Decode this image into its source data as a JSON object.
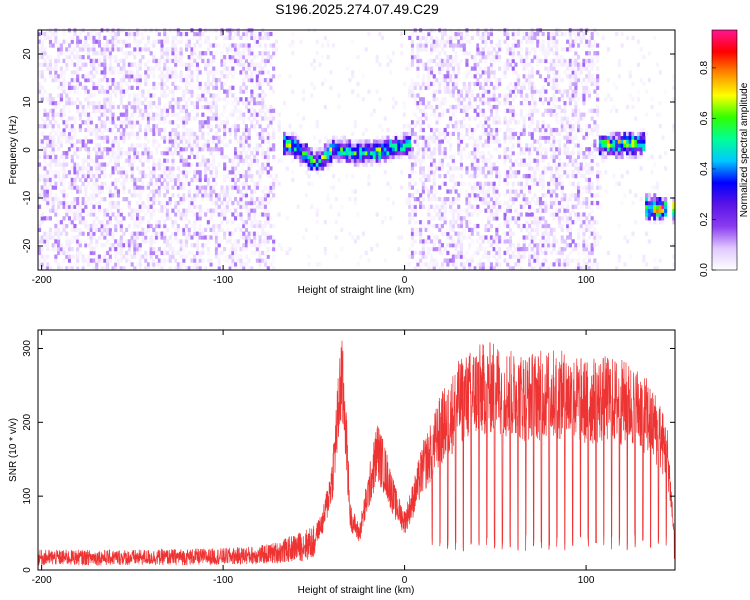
{
  "title": "S196.2025.274.07.49.C29",
  "chart_data": [
    {
      "type": "heatmap",
      "title": "S196.2025.274.07.49.C29",
      "xlabel": "Height of straight line (km)",
      "ylabel": "Frequency (Hz)",
      "xlim": [
        -202,
        149
      ],
      "ylim": [
        -25,
        25
      ],
      "xticks": [
        -200,
        -100,
        0,
        100
      ],
      "yticks": [
        -20,
        -10,
        0,
        10,
        20
      ],
      "colorbar": {
        "label": "Normalized spectral amplitude",
        "range": [
          0.0,
          0.95
        ],
        "ticks": [
          0.0,
          0.2,
          0.4,
          0.6,
          0.8
        ],
        "tick_labels": [
          "0.0",
          "0.2",
          "0.4",
          "0.6",
          "0.8"
        ],
        "colormap": [
          "#ffffff",
          "#e0c8ff",
          "#8a3cf0",
          "#5a14e6",
          "#0000ff",
          "#00c8ff",
          "#00ff96",
          "#32ff00",
          "#ffff00",
          "#ff8c00",
          "#ff0000",
          "#ff1493"
        ]
      },
      "noise_regions": [
        {
          "x": [
            -202,
            -72
          ],
          "level": 0.05
        },
        {
          "x": [
            -72,
            2
          ],
          "level": 0.012
        },
        {
          "x": [
            2,
            106
          ],
          "level": 0.05
        },
        {
          "x": [
            106,
            149
          ],
          "level": 0.012
        }
      ],
      "gaps": [
        [
          52,
          53
        ],
        [
          144,
          146
        ]
      ],
      "signal_tracks": [
        {
          "x": [
            -68,
            -60,
            -50,
            -45,
            -40,
            -30,
            -20,
            -10,
            0,
            2
          ],
          "freq": [
            1,
            0,
            -3,
            -2,
            0,
            -1,
            -1,
            0,
            0.5,
            1
          ],
          "amplitude": 0.55
        },
        {
          "x": [
            106,
            115,
            125,
            131
          ],
          "freq": [
            0.8,
            0.8,
            0.9,
            1.0
          ],
          "amplitude": 0.6
        },
        {
          "x": [
            132,
            140,
            149
          ],
          "freq": [
            -12.5,
            -12.5,
            -12.5
          ],
          "amplitude": 0.75
        }
      ]
    },
    {
      "type": "line",
      "xlabel": "Height of straight line (km)",
      "ylabel": "SNR (10 * v/v)",
      "xlim": [
        -202,
        149
      ],
      "ylim": [
        0,
        325
      ],
      "xticks": [
        -200,
        -100,
        0,
        100
      ],
      "yticks": [
        0,
        100,
        200,
        300
      ],
      "series_color": "#ee3333",
      "envelope": {
        "x": [
          -202,
          -150,
          -100,
          -80,
          -70,
          -60,
          -50,
          -45,
          -40,
          -36,
          -35,
          -33,
          -30,
          -25,
          -20,
          -15,
          -10,
          -5,
          0,
          5,
          10,
          15,
          20,
          25,
          30,
          40,
          50,
          60,
          70,
          80,
          90,
          100,
          110,
          120,
          130,
          135,
          140,
          145,
          149
        ],
        "y": [
          25,
          25,
          27,
          30,
          35,
          45,
          55,
          80,
          150,
          280,
          320,
          270,
          90,
          60,
          130,
          200,
          160,
          110,
          80,
          120,
          170,
          200,
          235,
          255,
          280,
          300,
          305,
          290,
          290,
          295,
          290,
          280,
          285,
          280,
          270,
          250,
          230,
          190,
          40
        ]
      },
      "dips": {
        "x_start": 15,
        "x_end": 146,
        "spacing": 4.3,
        "floor": 25
      }
    }
  ]
}
